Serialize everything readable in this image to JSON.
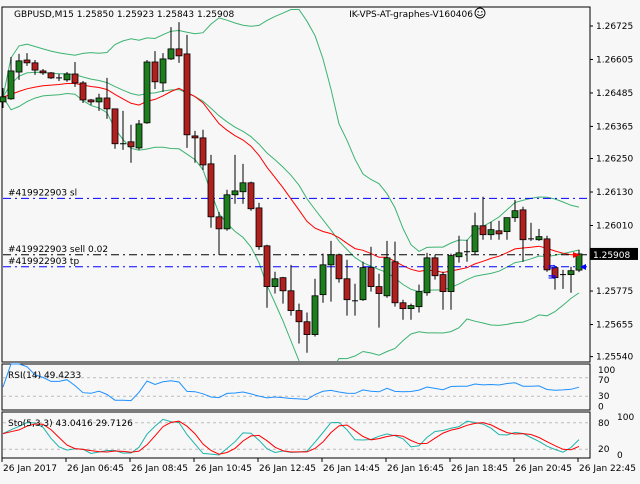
{
  "header": {
    "symbol_info": "GBPUSD,M15  1.25850 1.25923 1.25843 1.25908",
    "expert_name": "IK-VPS-AT-graphes-V160406",
    "expert_icon": "smiley-icon"
  },
  "colors": {
    "background": "#f7f7f7",
    "bull": "#1e7d1e",
    "bear": "#b02020",
    "bands": "#3cb371",
    "ma": "#ff0000",
    "rsi": "#1e90ff",
    "sto_main": "#20b2aa",
    "sto_signal": "#ff0000",
    "order_sl_tp": "#0000ff",
    "order_entry": "#000000"
  },
  "price_axis": [
    "1.26725",
    "1.26605",
    "1.26485",
    "1.26365",
    "1.26250",
    "1.26130",
    "1.26010",
    "1.25775",
    "1.25655",
    "1.25540"
  ],
  "current_price": "1.25908",
  "orders": [
    {
      "label": "#419922903 sl",
      "price": 1.26107,
      "type": "sl"
    },
    {
      "label": "#419922903 sell 0.02",
      "price": 1.25905,
      "type": "entry"
    },
    {
      "label": "#419922903 tp",
      "price": 1.25862,
      "type": "tp"
    }
  ],
  "time_axis": [
    "26 Jan 2017",
    "26 Jan 06:45",
    "26 Jan 08:45",
    "26 Jan 10:45",
    "26 Jan 12:45",
    "26 Jan 14:45",
    "26 Jan 16:45",
    "26 Jan 18:45",
    "26 Jan 20:45",
    "26 Jan 22:45"
  ],
  "rsi": {
    "label": "RSI(14) 49.4233",
    "levels": [
      "100",
      "70",
      "30",
      "0"
    ]
  },
  "stochastic": {
    "label": "Sto(5,3,3) 43.0416 29.7126",
    "levels": [
      "100",
      "80",
      "20",
      "0"
    ]
  },
  "chart_data": {
    "type": "candlestick",
    "symbol": "GBPUSD",
    "timeframe": "M15",
    "ohlc": [
      [
        1.26453,
        1.26503,
        1.26431,
        1.26471
      ],
      [
        1.26464,
        1.26614,
        1.2646,
        1.26564
      ],
      [
        1.2656,
        1.26625,
        1.26532,
        1.266
      ],
      [
        1.26603,
        1.26628,
        1.26582,
        1.26593
      ],
      [
        1.26593,
        1.26603,
        1.2655,
        1.26567
      ],
      [
        1.26564,
        1.26571,
        1.2655,
        1.26557
      ],
      [
        1.26557,
        1.2656,
        1.26535,
        1.26539
      ],
      [
        1.26539,
        1.26553,
        1.26528,
        1.26539
      ],
      [
        1.26532,
        1.2656,
        1.26525,
        1.26553
      ],
      [
        1.26553,
        1.26596,
        1.26507,
        1.26521
      ],
      [
        1.26521,
        1.26528,
        1.26449,
        1.2646
      ],
      [
        1.2646,
        1.26464,
        1.26442,
        1.26453
      ],
      [
        1.26453,
        1.26482,
        1.26421,
        1.26467
      ],
      [
        1.26467,
        1.26539,
        1.26392,
        1.26428
      ],
      [
        1.26428,
        1.26428,
        1.26285,
        1.26303
      ],
      [
        1.26303,
        1.26421,
        1.26281,
        1.26303
      ],
      [
        1.2631,
        1.26371,
        1.26235,
        1.26292
      ],
      [
        1.26288,
        1.26388,
        1.26281,
        1.26374
      ],
      [
        1.26378,
        1.26603,
        1.26374,
        1.26596
      ],
      [
        1.26596,
        1.26635,
        1.26499,
        1.26525
      ],
      [
        1.26521,
        1.26628,
        1.26489,
        1.26607
      ],
      [
        1.26607,
        1.26721,
        1.26603,
        1.26643
      ],
      [
        1.26643,
        1.26739,
        1.26593,
        1.26618
      ],
      [
        1.26625,
        1.26693,
        1.26288,
        1.26335
      ],
      [
        1.26331,
        1.26349,
        1.26235,
        1.26324
      ],
      [
        1.26324,
        1.26353,
        1.26209,
        1.26227
      ],
      [
        1.26231,
        1.26263,
        1.26002,
        1.26041
      ],
      [
        1.26041,
        1.26059,
        1.25905,
        1.25998
      ],
      [
        1.25998,
        1.26138,
        1.25991,
        1.2612
      ],
      [
        1.2612,
        1.26263,
        1.26088,
        1.26134
      ],
      [
        1.26131,
        1.26231,
        1.26088,
        1.26163
      ],
      [
        1.26163,
        1.26167,
        1.26063,
        1.2607
      ],
      [
        1.26073,
        1.26091,
        1.25923,
        1.25934
      ],
      [
        1.25937,
        1.25941,
        1.25715,
        1.25791
      ],
      [
        1.25791,
        1.25844,
        1.25766,
        1.25819
      ],
      [
        1.25823,
        1.25826,
        1.2573,
        1.25776
      ],
      [
        1.25776,
        1.25869,
        1.25687,
        1.25705
      ],
      [
        1.25705,
        1.2573,
        1.25587,
        1.25665
      ],
      [
        1.25665,
        1.25698,
        1.25554,
        1.25619
      ],
      [
        1.25619,
        1.25819,
        1.25612,
        1.25758
      ],
      [
        1.25762,
        1.25909,
        1.25733,
        1.25869
      ],
      [
        1.25869,
        1.25955,
        1.25737,
        1.25905
      ],
      [
        1.25905,
        1.25909,
        1.25805,
        1.25819
      ],
      [
        1.25819,
        1.25887,
        1.25687,
        1.25744
      ],
      [
        1.2574,
        1.25801,
        1.25687,
        1.2574
      ],
      [
        1.25744,
        1.2588,
        1.2574,
        1.25859
      ],
      [
        1.25859,
        1.25934,
        1.25773,
        1.25791
      ],
      [
        1.25791,
        1.25837,
        1.25644,
        1.25766
      ],
      [
        1.25758,
        1.25955,
        1.25751,
        1.25894
      ],
      [
        1.2588,
        1.25952,
        1.25719,
        1.25733
      ],
      [
        1.25733,
        1.25744,
        1.25672,
        1.25712
      ],
      [
        1.25712,
        1.2573,
        1.25672,
        1.25723
      ],
      [
        1.25719,
        1.25798,
        1.25698,
        1.25773
      ],
      [
        1.25769,
        1.25912,
        1.25758,
        1.25894
      ],
      [
        1.25894,
        1.25905,
        1.25816,
        1.2583
      ],
      [
        1.25834,
        1.25844,
        1.25708,
        1.25773
      ],
      [
        1.25773,
        1.25909,
        1.25708,
        1.25902
      ],
      [
        1.25898,
        1.25973,
        1.25877,
        1.25912
      ],
      [
        1.25916,
        1.25959,
        1.2588,
        1.25916
      ],
      [
        1.25916,
        1.26056,
        1.25905,
        1.26009
      ],
      [
        1.26009,
        1.26113,
        1.25959,
        1.25977
      ],
      [
        1.25977,
        1.26023,
        1.25959,
        1.25995
      ],
      [
        1.25991,
        1.26027,
        1.25959,
        1.2598
      ],
      [
        1.25988,
        1.26038,
        1.25959,
        1.26038
      ],
      [
        1.26038,
        1.26102,
        1.26023,
        1.26063
      ],
      [
        1.26066,
        1.26077,
        1.2588,
        1.25959
      ],
      [
        1.25962,
        1.2602,
        1.25955,
        1.25962
      ],
      [
        1.25959,
        1.25998,
        1.25955,
        1.2597
      ],
      [
        1.25962,
        1.25973,
        1.25844,
        1.25851
      ],
      [
        1.25859,
        1.25862,
        1.2578,
        1.25823
      ],
      [
        1.25834,
        1.25851,
        1.25783,
        1.25834
      ],
      [
        1.25834,
        1.25862,
        1.25769,
        1.25848
      ],
      [
        1.2585,
        1.25923,
        1.25843,
        1.25908
      ]
    ],
    "ylim": [
      1.2553,
      1.2679
    ]
  }
}
